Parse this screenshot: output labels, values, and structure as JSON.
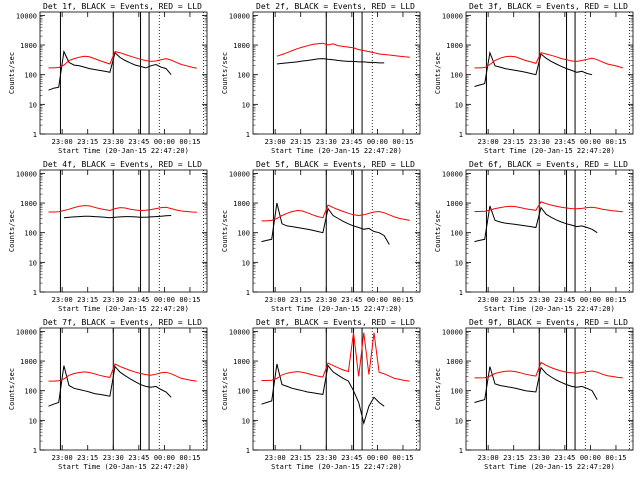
{
  "figure": {
    "y_ticks": [
      "1",
      "10",
      "100",
      "1000",
      "10000"
    ],
    "x_ticks": [
      "23:00",
      "23:15",
      "23:30",
      "23:45",
      "00:00",
      "00:15"
    ],
    "ylabel": "Counts/sec",
    "xlabel": "Start Time (20-Jan-15 22:47:20)",
    "ylim": [
      1,
      13000
    ],
    "y_scale": "log",
    "colors": {
      "events": "#000000",
      "lld": "#ff0000",
      "axes": "#000000"
    }
  },
  "chart_data": [
    {
      "type": "line",
      "title": "Det 1f, BLACK = Events, RED = LLD",
      "x": [
        "22:52",
        "22:55",
        "22:58",
        "23:01",
        "23:04",
        "23:07",
        "23:10",
        "23:13",
        "23:16",
        "23:19",
        "23:22",
        "23:25",
        "23:28",
        "23:31",
        "23:34",
        "23:37",
        "23:40",
        "23:43",
        "23:46",
        "23:49",
        "23:52",
        "23:55",
        "23:58",
        "00:01",
        "00:04",
        "00:07",
        "00:10",
        "00:13",
        "00:16",
        "00:19"
      ],
      "series": [
        {
          "name": "BLACK = Events",
          "values": [
            30,
            35,
            38,
            600,
            260,
            210,
            200,
            180,
            160,
            150,
            140,
            130,
            120,
            550,
            380,
            300,
            250,
            210,
            190,
            170,
            200,
            220,
            180,
            160,
            100,
            null,
            null,
            null,
            null,
            null
          ]
        },
        {
          "name": "RED = LLD",
          "values": [
            170,
            170,
            175,
            210,
            300,
            350,
            390,
            420,
            400,
            350,
            300,
            260,
            230,
            600,
            550,
            480,
            420,
            370,
            330,
            300,
            280,
            290,
            320,
            350,
            310,
            260,
            220,
            200,
            180,
            165
          ]
        }
      ]
    },
    {
      "type": "line",
      "title": "Det 2f, BLACK = Events, RED = LLD",
      "x": [
        "22:52",
        "22:55",
        "22:58",
        "23:01",
        "23:04",
        "23:07",
        "23:10",
        "23:13",
        "23:16",
        "23:19",
        "23:22",
        "23:25",
        "23:28",
        "23:31",
        "23:34",
        "23:37",
        "23:40",
        "23:43",
        "23:46",
        "23:49",
        "23:52",
        "23:55",
        "23:58",
        "00:01",
        "00:04",
        "00:07",
        "00:10",
        "00:13",
        "00:16",
        "00:19"
      ],
      "series": [
        {
          "name": "BLACK = Events",
          "values": [
            null,
            null,
            null,
            230,
            240,
            250,
            260,
            270,
            290,
            300,
            320,
            340,
            350,
            330,
            320,
            300,
            290,
            280,
            280,
            270,
            270,
            260,
            260,
            250,
            250,
            null,
            null,
            null,
            null,
            null
          ]
        },
        {
          "name": "RED = LLD",
          "values": [
            null,
            null,
            null,
            420,
            480,
            550,
            650,
            750,
            850,
            950,
            1050,
            1100,
            1150,
            1000,
            1100,
            950,
            900,
            850,
            800,
            700,
            650,
            600,
            550,
            500,
            480,
            460,
            440,
            420,
            400,
            390
          ]
        }
      ]
    },
    {
      "type": "line",
      "title": "Det 3f, BLACK = Events, RED = LLD",
      "x": [
        "22:52",
        "22:55",
        "22:58",
        "23:01",
        "23:04",
        "23:07",
        "23:10",
        "23:13",
        "23:16",
        "23:19",
        "23:22",
        "23:25",
        "23:28",
        "23:31",
        "23:34",
        "23:37",
        "23:40",
        "23:43",
        "23:46",
        "23:49",
        "23:52",
        "23:55",
        "23:58",
        "00:01",
        "00:04",
        "00:07",
        "00:10",
        "00:13",
        "00:16",
        "00:19"
      ],
      "series": [
        {
          "name": "BLACK = Events",
          "values": [
            40,
            45,
            50,
            550,
            200,
            180,
            160,
            150,
            140,
            130,
            120,
            110,
            100,
            500,
            360,
            280,
            230,
            190,
            160,
            140,
            120,
            130,
            110,
            100,
            null,
            null,
            null,
            null,
            null,
            null
          ]
        },
        {
          "name": "RED = LLD",
          "values": [
            170,
            170,
            175,
            220,
            300,
            360,
            400,
            420,
            400,
            350,
            300,
            270,
            240,
            550,
            500,
            450,
            400,
            350,
            320,
            290,
            280,
            300,
            330,
            360,
            320,
            270,
            230,
            210,
            190,
            170
          ]
        }
      ]
    },
    {
      "type": "line",
      "title": "Det 4f, BLACK = Events, RED = LLD",
      "x": [
        "22:52",
        "22:55",
        "22:58",
        "23:01",
        "23:04",
        "23:07",
        "23:10",
        "23:13",
        "23:16",
        "23:19",
        "23:22",
        "23:25",
        "23:28",
        "23:31",
        "23:34",
        "23:37",
        "23:40",
        "23:43",
        "23:46",
        "23:49",
        "23:52",
        "23:55",
        "23:58",
        "00:01",
        "00:04",
        "00:07",
        "00:10",
        "00:13",
        "00:16",
        "00:19"
      ],
      "series": [
        {
          "name": "BLACK = Events",
          "values": [
            null,
            null,
            null,
            320,
            330,
            340,
            350,
            360,
            360,
            350,
            340,
            330,
            320,
            330,
            340,
            350,
            350,
            340,
            330,
            330,
            340,
            350,
            360,
            370,
            380,
            null,
            null,
            null,
            null,
            null
          ]
        },
        {
          "name": "RED = LLD",
          "values": [
            500,
            500,
            510,
            560,
            620,
            700,
            780,
            820,
            800,
            720,
            650,
            600,
            560,
            650,
            700,
            680,
            620,
            580,
            560,
            570,
            600,
            650,
            700,
            720,
            650,
            580,
            540,
            520,
            500,
            490
          ]
        }
      ]
    },
    {
      "type": "line",
      "title": "Det 5f, BLACK = Events, RED = LLD",
      "x": [
        "22:52",
        "22:55",
        "22:58",
        "23:01",
        "23:04",
        "23:07",
        "23:10",
        "23:13",
        "23:16",
        "23:19",
        "23:22",
        "23:25",
        "23:28",
        "23:31",
        "23:34",
        "23:37",
        "23:40",
        "23:43",
        "23:46",
        "23:49",
        "23:52",
        "23:55",
        "23:58",
        "00:01",
        "00:04",
        "00:07",
        "00:10",
        "00:13",
        "00:16",
        "00:19"
      ],
      "series": [
        {
          "name": "BLACK = Events",
          "values": [
            50,
            55,
            60,
            1000,
            200,
            170,
            160,
            150,
            140,
            130,
            120,
            110,
            100,
            650,
            380,
            300,
            240,
            200,
            170,
            150,
            130,
            140,
            110,
            100,
            80,
            40,
            null,
            null,
            null,
            null
          ]
        },
        {
          "name": "RED = LLD",
          "values": [
            250,
            250,
            260,
            300,
            380,
            450,
            520,
            560,
            540,
            470,
            400,
            350,
            320,
            850,
            700,
            600,
            520,
            450,
            400,
            380,
            400,
            450,
            500,
            520,
            470,
            400,
            340,
            300,
            280,
            260
          ]
        }
      ]
    },
    {
      "type": "line",
      "title": "Det 6f, BLACK = Events, RED = LLD",
      "x": [
        "22:52",
        "22:55",
        "22:58",
        "23:01",
        "23:04",
        "23:07",
        "23:10",
        "23:13",
        "23:16",
        "23:19",
        "23:22",
        "23:25",
        "23:28",
        "23:31",
        "23:34",
        "23:37",
        "23:40",
        "23:43",
        "23:46",
        "23:49",
        "23:52",
        "23:55",
        "23:58",
        "00:01",
        "00:04",
        "00:07",
        "00:10",
        "00:13",
        "00:16",
        "00:19"
      ],
      "series": [
        {
          "name": "BLACK = Events",
          "values": [
            50,
            55,
            60,
            800,
            260,
            230,
            210,
            200,
            190,
            180,
            170,
            160,
            150,
            700,
            420,
            330,
            270,
            230,
            200,
            180,
            160,
            170,
            150,
            130,
            100,
            null,
            null,
            null,
            null,
            null
          ]
        },
        {
          "name": "RED = LLD",
          "values": [
            520,
            520,
            530,
            580,
            650,
            700,
            750,
            780,
            760,
            700,
            640,
            600,
            570,
            1100,
            950,
            850,
            780,
            720,
            680,
            650,
            640,
            660,
            700,
            720,
            680,
            620,
            580,
            550,
            530,
            510
          ]
        }
      ]
    },
    {
      "type": "line",
      "title": "Det 7f, BLACK = Events, RED = LLD",
      "x": [
        "22:52",
        "22:55",
        "22:58",
        "23:01",
        "23:04",
        "23:07",
        "23:10",
        "23:13",
        "23:16",
        "23:19",
        "23:22",
        "23:25",
        "23:28",
        "23:31",
        "23:34",
        "23:37",
        "23:40",
        "23:43",
        "23:46",
        "23:49",
        "23:52",
        "23:55",
        "23:58",
        "00:01",
        "00:04",
        "00:07",
        "00:10",
        "00:13",
        "00:16",
        "00:19"
      ],
      "series": [
        {
          "name": "BLACK = Events",
          "values": [
            30,
            35,
            40,
            700,
            150,
            120,
            110,
            100,
            90,
            80,
            75,
            70,
            65,
            650,
            420,
            320,
            250,
            200,
            160,
            140,
            130,
            140,
            110,
            90,
            60,
            null,
            null,
            null,
            null,
            null
          ]
        },
        {
          "name": "RED = LLD",
          "values": [
            210,
            210,
            215,
            250,
            330,
            380,
            410,
            430,
            410,
            370,
            330,
            300,
            280,
            800,
            650,
            560,
            480,
            420,
            380,
            350,
            330,
            360,
            400,
            420,
            370,
            310,
            260,
            240,
            220,
            210
          ]
        }
      ]
    },
    {
      "type": "line",
      "title": "Det 8f, BLACK = Events, RED = LLD",
      "x": [
        "22:52",
        "22:55",
        "22:58",
        "23:01",
        "23:04",
        "23:07",
        "23:10",
        "23:13",
        "23:16",
        "23:19",
        "23:22",
        "23:25",
        "23:28",
        "23:31",
        "23:34",
        "23:37",
        "23:40",
        "23:43",
        "23:46",
        "23:49",
        "23:52",
        "23:55",
        "23:58",
        "00:01",
        "00:04",
        "00:07",
        "00:10",
        "00:13",
        "00:16",
        "00:19"
      ],
      "series": [
        {
          "name": "BLACK = Events",
          "values": [
            35,
            40,
            45,
            800,
            160,
            140,
            120,
            110,
            100,
            90,
            85,
            80,
            75,
            700,
            430,
            330,
            260,
            210,
            100,
            40,
            8,
            30,
            60,
            40,
            30,
            null,
            null,
            null,
            null,
            null
          ]
        },
        {
          "name": "RED = LLD",
          "values": [
            220,
            220,
            225,
            260,
            340,
            390,
            420,
            440,
            420,
            380,
            340,
            310,
            290,
            850,
            700,
            590,
            500,
            440,
            9000,
            300,
            9000,
            350,
            9000,
            420,
            370,
            310,
            260,
            240,
            220,
            210
          ]
        }
      ]
    },
    {
      "type": "line",
      "title": "Det 9f, BLACK = Events, RED = LLD",
      "x": [
        "22:52",
        "22:55",
        "22:58",
        "23:01",
        "23:04",
        "23:07",
        "23:10",
        "23:13",
        "23:16",
        "23:19",
        "23:22",
        "23:25",
        "23:28",
        "23:31",
        "23:34",
        "23:37",
        "23:40",
        "23:43",
        "23:46",
        "23:49",
        "23:52",
        "23:55",
        "23:58",
        "00:01",
        "00:04",
        "00:07",
        "00:10",
        "00:13",
        "00:16",
        "00:19"
      ],
      "series": [
        {
          "name": "BLACK = Events",
          "values": [
            40,
            45,
            50,
            650,
            170,
            150,
            140,
            130,
            120,
            110,
            100,
            95,
            90,
            600,
            380,
            290,
            230,
            190,
            160,
            140,
            130,
            140,
            120,
            100,
            50,
            null,
            null,
            null,
            null,
            null
          ]
        },
        {
          "name": "RED = LLD",
          "values": [
            270,
            270,
            275,
            310,
            380,
            420,
            450,
            460,
            440,
            400,
            360,
            330,
            310,
            900,
            720,
            600,
            520,
            460,
            420,
            400,
            390,
            410,
            440,
            460,
            420,
            360,
            320,
            300,
            280,
            270
          ]
        }
      ]
    }
  ]
}
